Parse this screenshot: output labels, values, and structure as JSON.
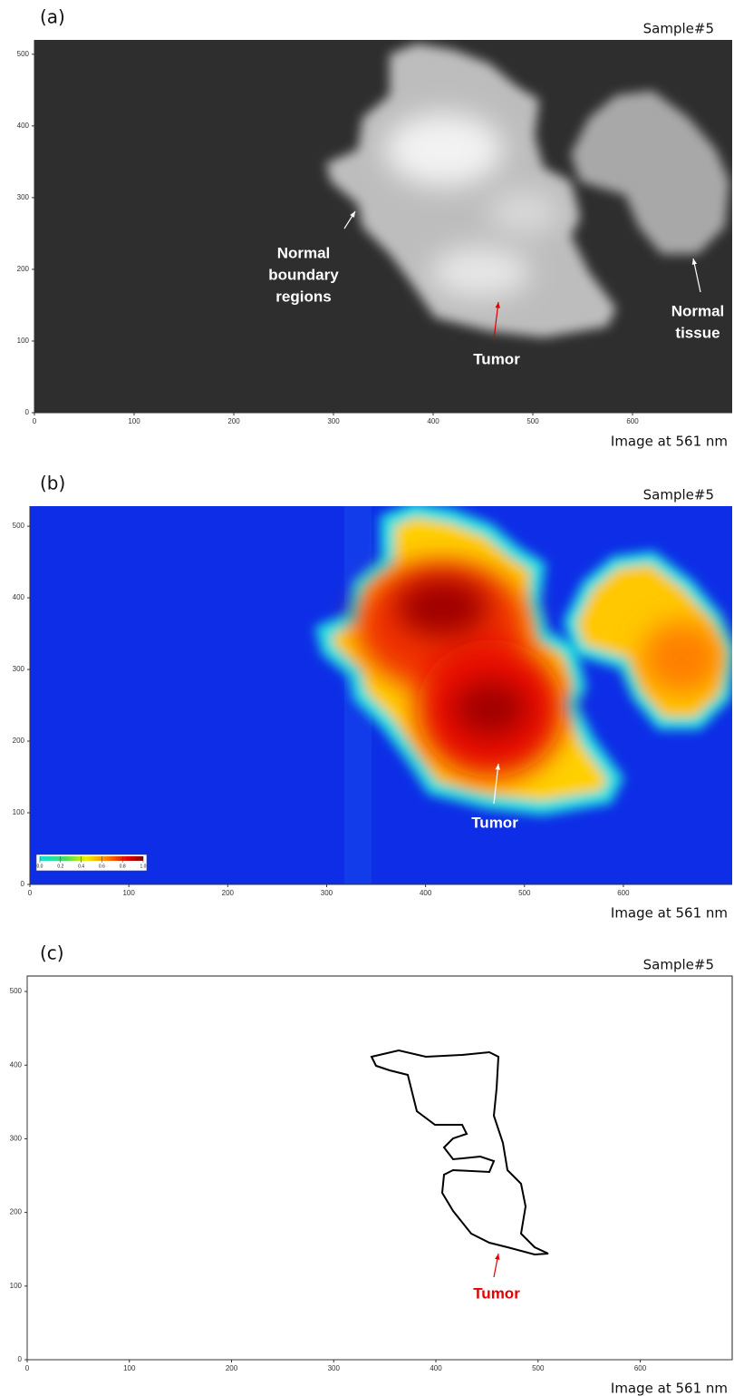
{
  "panels": [
    {
      "label": "(a)",
      "sample": "Sample#5",
      "caption": "Image at 561 nm",
      "xlim": [
        0,
        700
      ],
      "ylim": [
        0,
        520
      ],
      "xticks": [
        0,
        100,
        200,
        300,
        400,
        500,
        600
      ],
      "yticks": [
        0,
        100,
        200,
        300,
        400,
        500
      ],
      "annotations": [
        {
          "lines": [
            "Normal",
            "boundary",
            "regions"
          ],
          "color": "#ffffff"
        },
        {
          "lines": [
            "Tumor"
          ],
          "color": "#ffffff"
        },
        {
          "lines": [
            "Normal",
            "tissue"
          ],
          "color": "#ffffff"
        }
      ]
    },
    {
      "label": "(b)",
      "sample": "Sample#5",
      "caption": "Image at 561 nm",
      "xlim": [
        0,
        710
      ],
      "ylim": [
        0,
        528
      ],
      "xticks": [
        0,
        100,
        200,
        300,
        400,
        500,
        600
      ],
      "yticks": [
        0,
        100,
        200,
        300,
        400,
        500
      ],
      "colorbar": {
        "ticks": [
          {
            "value": 0,
            "label": "0.0"
          },
          {
            "value": 0.2,
            "label": "0.2"
          },
          {
            "value": 0.4,
            "label": "0.4"
          },
          {
            "value": 0.6,
            "label": "0.6"
          },
          {
            "value": 0.8,
            "label": "0.8"
          },
          {
            "value": 1,
            "label": "1.0"
          }
        ]
      },
      "annotations": [
        {
          "lines": [
            "Tumor"
          ],
          "color": "#ffffff"
        }
      ]
    },
    {
      "label": "(c)",
      "sample": "Sample#5",
      "caption": "Image at 561 nm",
      "xlim": [
        0,
        690
      ],
      "ylim": [
        0,
        521
      ],
      "xticks": [
        0,
        100,
        200,
        300,
        400,
        500,
        600
      ],
      "yticks": [
        0,
        100,
        200,
        300,
        400,
        500
      ],
      "annotations": [
        {
          "lines": [
            "Tumor"
          ],
          "color": "#e00000"
        }
      ]
    }
  ]
}
